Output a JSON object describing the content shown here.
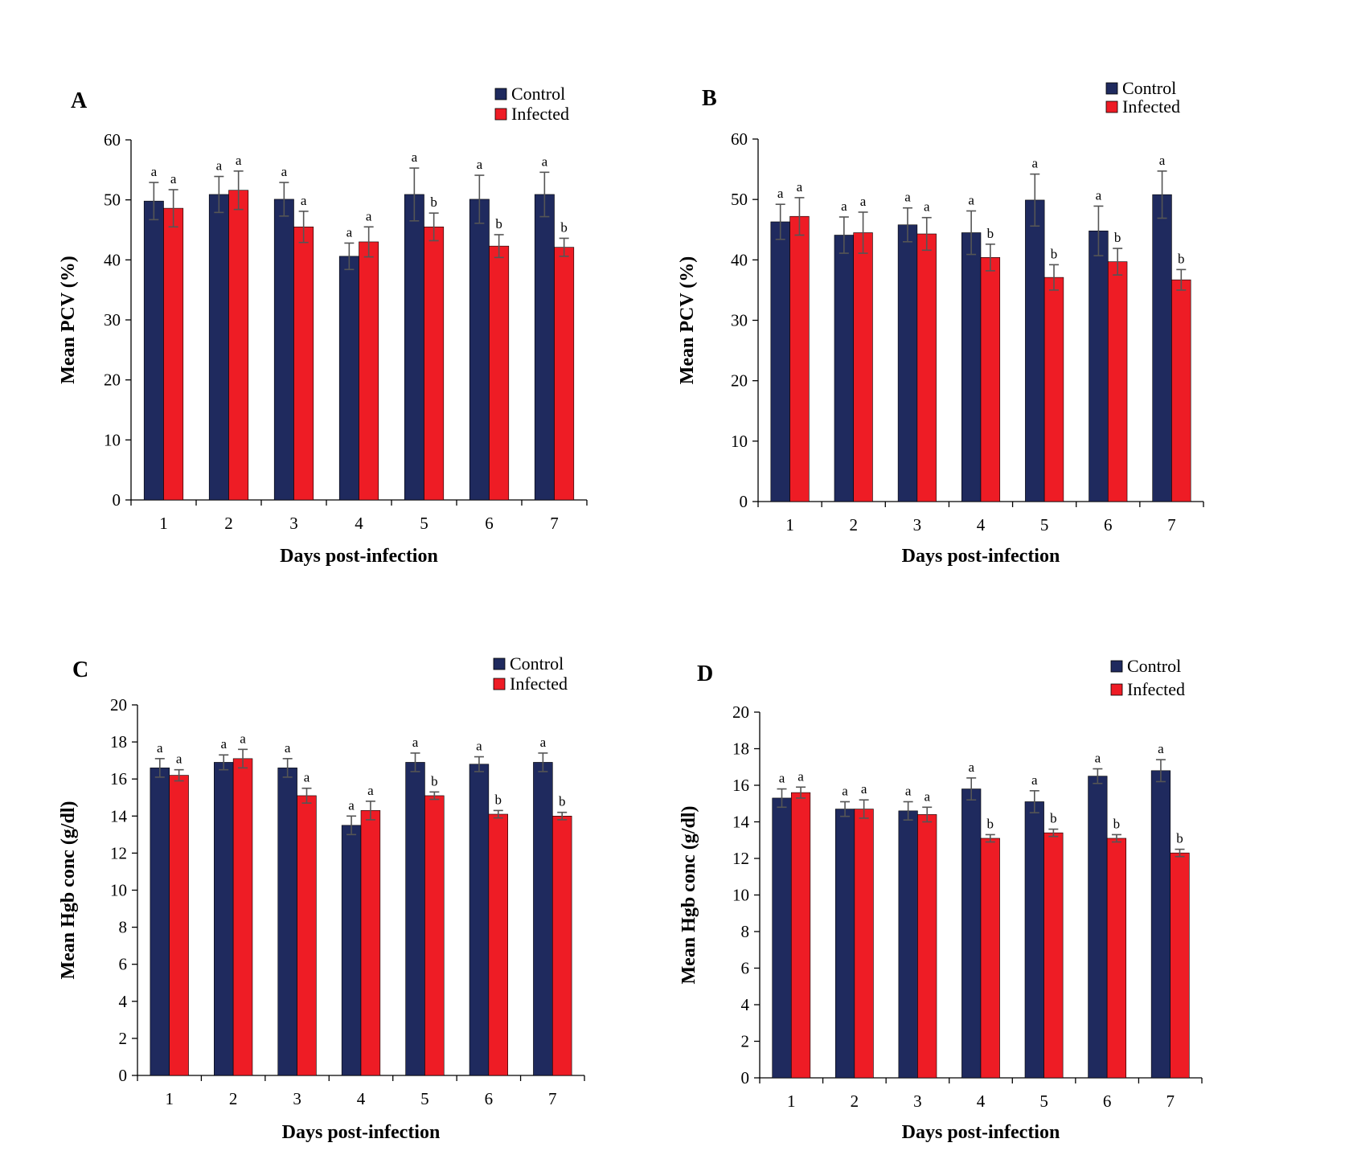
{
  "colors": {
    "control": "#1f2a5e",
    "infected": "#ee1c25"
  },
  "chart_data": [
    {
      "panel_label": "A",
      "type": "bar",
      "ylabel": "Mean PCV (%)",
      "xlabel": "Days post-infection",
      "ylim": [
        0,
        60
      ],
      "yticks": [
        0,
        10,
        20,
        30,
        40,
        50,
        60
      ],
      "categories": [
        "1",
        "2",
        "3",
        "4",
        "5",
        "6",
        "7"
      ],
      "legend": "top-right",
      "series": [
        {
          "name": "Control",
          "values": [
            49.8,
            50.9,
            50.1,
            40.6,
            50.9,
            50.1,
            50.9
          ],
          "errors": [
            3.1,
            3.0,
            2.8,
            2.2,
            4.4,
            4.0,
            3.7
          ],
          "significance": [
            "a",
            "a",
            "a",
            "a",
            "a",
            "a",
            "a"
          ]
        },
        {
          "name": "Infected",
          "values": [
            48.6,
            51.6,
            45.5,
            43.0,
            45.5,
            42.3,
            42.1
          ],
          "errors": [
            3.1,
            3.2,
            2.6,
            2.5,
            2.3,
            1.9,
            1.5
          ],
          "significance": [
            "a",
            "a",
            "a",
            "a",
            "b",
            "b",
            "b"
          ]
        }
      ]
    },
    {
      "panel_label": "B",
      "type": "bar",
      "ylabel": "Mean PCV (%)",
      "xlabel": "Days post-infection",
      "ylim": [
        0,
        60
      ],
      "yticks": [
        0,
        10,
        20,
        30,
        40,
        50,
        60
      ],
      "categories": [
        "1",
        "2",
        "3",
        "4",
        "5",
        "6",
        "7"
      ],
      "legend": "top-right",
      "series": [
        {
          "name": "Control",
          "values": [
            46.3,
            44.1,
            45.8,
            44.5,
            49.9,
            44.8,
            50.8
          ],
          "errors": [
            2.9,
            3.0,
            2.8,
            3.6,
            4.3,
            4.1,
            3.9
          ],
          "significance": [
            "a",
            "a",
            "a",
            "a",
            "a",
            "a",
            "a"
          ]
        },
        {
          "name": "Infected",
          "values": [
            47.2,
            44.5,
            44.3,
            40.4,
            37.1,
            39.7,
            36.7
          ],
          "errors": [
            3.1,
            3.4,
            2.7,
            2.2,
            2.1,
            2.2,
            1.7
          ],
          "significance": [
            "a",
            "a",
            "a",
            "b",
            "b",
            "b",
            "b"
          ]
        }
      ]
    },
    {
      "panel_label": "C",
      "type": "bar",
      "ylabel": "Mean Hgb conc (g/dl)",
      "xlabel": "Days post-infection",
      "ylim": [
        0,
        20
      ],
      "yticks": [
        0,
        2,
        4,
        6,
        8,
        10,
        12,
        14,
        16,
        18,
        20
      ],
      "categories": [
        "1",
        "2",
        "3",
        "4",
        "5",
        "6",
        "7"
      ],
      "legend": "top-right",
      "series": [
        {
          "name": "Control",
          "values": [
            16.6,
            16.9,
            16.6,
            13.5,
            16.9,
            16.8,
            16.9
          ],
          "errors": [
            0.5,
            0.4,
            0.5,
            0.5,
            0.5,
            0.4,
            0.5
          ],
          "significance": [
            "a",
            "a",
            "a",
            "a",
            "a",
            "a",
            "a"
          ]
        },
        {
          "name": "Infected",
          "values": [
            16.2,
            17.1,
            15.1,
            14.3,
            15.1,
            14.1,
            14.0
          ],
          "errors": [
            0.3,
            0.5,
            0.4,
            0.5,
            0.2,
            0.2,
            0.2
          ],
          "significance": [
            "a",
            "a",
            "a",
            "a",
            "b",
            "b",
            "b"
          ]
        }
      ]
    },
    {
      "panel_label": "D",
      "type": "bar",
      "ylabel": "Mean Hgb conc (g/dl)",
      "xlabel": "Days post-infection",
      "ylim": [
        0,
        20
      ],
      "yticks": [
        0,
        2,
        4,
        6,
        8,
        10,
        12,
        14,
        16,
        18,
        20
      ],
      "categories": [
        "1",
        "2",
        "3",
        "4",
        "5",
        "6",
        "7"
      ],
      "legend": "top-right",
      "series": [
        {
          "name": "Control",
          "values": [
            15.3,
            14.7,
            14.6,
            15.8,
            15.1,
            16.5,
            16.8
          ],
          "errors": [
            0.5,
            0.4,
            0.5,
            0.6,
            0.6,
            0.4,
            0.6
          ],
          "significance": [
            "a",
            "a",
            "a",
            "a",
            "a",
            "a",
            "a"
          ]
        },
        {
          "name": "Infected",
          "values": [
            15.6,
            14.7,
            14.4,
            13.1,
            13.4,
            13.1,
            12.3
          ],
          "errors": [
            0.3,
            0.5,
            0.4,
            0.2,
            0.2,
            0.2,
            0.2
          ],
          "significance": [
            "a",
            "a",
            "a",
            "b",
            "b",
            "b",
            "b"
          ]
        }
      ]
    }
  ]
}
